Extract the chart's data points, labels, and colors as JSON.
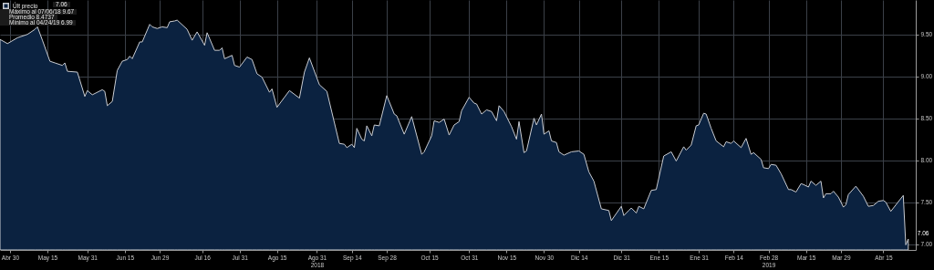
{
  "chart_data": {
    "type": "area",
    "annotations": [
      "7.06",
      "Máximo al 07/06/18 9.67",
      "Promedio 8.4737",
      "Mínimo al 04/24/19 6.99"
    ],
    "x": [
      "2018-04-26",
      "2018-04-29",
      "2018-05-03",
      "2018-05-07",
      "2018-05-10",
      "2018-05-11",
      "2018-05-13",
      "2018-05-16",
      "2018-05-18",
      "2018-05-21",
      "2018-05-22",
      "2018-05-23",
      "2018-05-27",
      "2018-05-30",
      "2018-05-31",
      "2018-06-02",
      "2018-06-06",
      "2018-06-07",
      "2018-06-08",
      "2018-06-10",
      "2018-06-12",
      "2018-06-14",
      "2018-06-16",
      "2018-06-17",
      "2018-06-18",
      "2018-06-21",
      "2018-06-22",
      "2018-06-25",
      "2018-06-26",
      "2018-06-28",
      "2018-06-30",
      "2018-07-02",
      "2018-07-03",
      "2018-07-05",
      "2018-07-06",
      "2018-07-10",
      "2018-07-12",
      "2018-07-14",
      "2018-07-17",
      "2018-07-18",
      "2018-07-21",
      "2018-07-23",
      "2018-07-24",
      "2018-07-25",
      "2018-07-28",
      "2018-07-29",
      "2018-07-31",
      "2018-08-03",
      "2018-08-05",
      "2018-08-07",
      "2018-08-09",
      "2018-08-12",
      "2018-08-13",
      "2018-08-15",
      "2018-08-20",
      "2018-08-24",
      "2018-08-26",
      "2018-08-28",
      "2018-09-01",
      "2018-09-04",
      "2018-09-09",
      "2018-09-11",
      "2018-09-12",
      "2018-09-14",
      "2018-09-15",
      "2018-09-16",
      "2018-09-18",
      "2018-09-19",
      "2018-09-20",
      "2018-09-22",
      "2018-09-23",
      "2018-09-25",
      "2018-09-28",
      "2018-10-01",
      "2018-10-02",
      "2018-10-05",
      "2018-10-08",
      "2018-10-12",
      "2018-10-13",
      "2018-10-16",
      "2018-10-17",
      "2018-10-19",
      "2018-10-21",
      "2018-10-23",
      "2018-10-25",
      "2018-10-27",
      "2018-10-28",
      "2018-10-31",
      "2018-11-02",
      "2018-11-03",
      "2018-11-05",
      "2018-11-07",
      "2018-11-09",
      "2018-11-11",
      "2018-11-12",
      "2018-11-14",
      "2018-11-17",
      "2018-11-19",
      "2018-11-20",
      "2018-11-22",
      "2018-11-23",
      "2018-11-26",
      "2018-11-27",
      "2018-11-29",
      "2018-11-30",
      "2018-12-02",
      "2018-12-03",
      "2018-12-05",
      "2018-12-06",
      "2018-12-08",
      "2018-12-11",
      "2018-12-14",
      "2018-12-16",
      "2018-12-18",
      "2018-12-20",
      "2018-12-23",
      "2018-12-26",
      "2018-12-27",
      "2018-12-31",
      "2019-01-01",
      "2019-01-03",
      "2019-01-04",
      "2019-01-06",
      "2019-01-07",
      "2019-01-09",
      "2019-01-12",
      "2019-01-14",
      "2019-01-17",
      "2019-01-20",
      "2019-01-22",
      "2019-01-25",
      "2019-01-26",
      "2019-01-28",
      "2019-01-30",
      "2019-01-31",
      "2019-02-02",
      "2019-02-03",
      "2019-02-05",
      "2019-02-07",
      "2019-02-10",
      "2019-02-11",
      "2019-02-13",
      "2019-02-14",
      "2019-02-17",
      "2019-02-19",
      "2019-02-21",
      "2019-02-22",
      "2019-02-25",
      "2019-02-26",
      "2019-02-28",
      "2019-03-01",
      "2019-03-03",
      "2019-03-05",
      "2019-03-08",
      "2019-03-09",
      "2019-03-11",
      "2019-03-13",
      "2019-03-14",
      "2019-03-16",
      "2019-03-17",
      "2019-03-19",
      "2019-03-21",
      "2019-03-22",
      "2019-03-23",
      "2019-03-25",
      "2019-03-26",
      "2019-03-28",
      "2019-03-30",
      "2019-03-31",
      "2019-04-01",
      "2019-04-04",
      "2019-04-07",
      "2019-04-09",
      "2019-04-11",
      "2019-04-13",
      "2019-04-15",
      "2019-04-16",
      "2019-04-18",
      "2019-04-23",
      "2019-04-24",
      "2019-04-25"
    ],
    "series": [
      {
        "name": "Últ precio",
        "color": "#0b2240",
        "values": [
          9.44,
          9.39,
          9.46,
          9.5,
          9.56,
          9.59,
          9.43,
          9.18,
          9.16,
          9.13,
          9.16,
          9.06,
          9.05,
          8.76,
          8.83,
          8.78,
          8.84,
          8.82,
          8.65,
          8.7,
          9.07,
          9.18,
          9.2,
          9.24,
          9.21,
          9.41,
          9.41,
          9.62,
          9.59,
          9.57,
          9.59,
          9.58,
          9.65,
          9.66,
          9.67,
          9.56,
          9.43,
          9.53,
          9.37,
          9.52,
          9.31,
          9.31,
          9.34,
          9.21,
          9.25,
          9.13,
          9.11,
          9.23,
          9.2,
          9.03,
          8.99,
          8.81,
          8.85,
          8.63,
          8.83,
          8.74,
          9.05,
          9.22,
          8.9,
          8.82,
          8.2,
          8.19,
          8.15,
          8.19,
          8.15,
          8.38,
          8.25,
          8.23,
          8.41,
          8.29,
          8.42,
          8.41,
          8.77,
          8.55,
          8.53,
          8.31,
          8.52,
          8.07,
          8.1,
          8.29,
          8.47,
          8.45,
          8.49,
          8.3,
          8.42,
          8.46,
          8.59,
          8.75,
          8.68,
          8.67,
          8.55,
          8.6,
          8.58,
          8.47,
          8.65,
          8.58,
          8.4,
          8.25,
          8.46,
          8.09,
          8.11,
          8.5,
          8.42,
          8.55,
          8.31,
          8.35,
          8.23,
          8.21,
          8.1,
          8.06,
          8.1,
          8.11,
          8.07,
          7.86,
          7.75,
          7.42,
          7.4,
          7.28,
          7.45,
          7.34,
          7.4,
          7.43,
          7.37,
          7.45,
          7.42,
          7.64,
          7.65,
          8.05,
          8.1,
          7.99,
          8.16,
          8.12,
          8.18,
          8.41,
          8.42,
          8.56,
          8.55,
          8.38,
          8.23,
          8.16,
          8.22,
          8.2,
          8.23,
          8.15,
          8.26,
          8.07,
          8.09,
          8.01,
          7.91,
          7.9,
          7.95,
          7.94,
          7.84,
          7.65,
          7.65,
          7.62,
          7.72,
          7.71,
          7.68,
          7.75,
          7.7,
          7.75,
          7.55,
          7.6,
          7.6,
          7.63,
          7.56,
          7.44,
          7.47,
          7.59,
          7.69,
          7.57,
          7.45,
          7.46,
          7.51,
          7.52,
          7.5,
          7.39,
          7.58,
          6.99,
          7.06
        ],
        "value_labels": [
          null,
          null,
          null,
          null,
          null,
          null,
          null,
          null,
          null,
          null,
          null,
          null,
          null,
          null,
          null,
          null,
          null,
          null,
          null,
          null,
          null,
          null,
          null,
          null,
          null,
          null,
          null,
          null,
          null,
          null,
          null,
          null,
          null,
          null,
          null,
          null,
          null,
          null,
          null,
          null,
          null,
          null,
          null,
          null,
          null,
          null,
          null,
          null,
          null,
          null,
          null,
          null,
          null,
          null,
          null,
          null,
          null,
          null,
          null,
          null,
          null,
          null,
          null,
          null,
          null,
          null,
          null,
          null,
          null,
          null,
          null,
          null,
          null,
          null,
          null,
          null,
          null,
          null,
          null,
          null,
          null,
          null,
          null,
          null,
          null,
          null,
          null,
          null,
          null,
          null,
          null,
          null,
          null,
          null,
          null,
          null,
          null,
          null,
          null,
          null,
          null,
          null,
          null,
          null,
          null,
          null,
          null,
          null,
          null,
          null,
          null,
          null,
          null,
          null,
          null,
          null,
          null,
          null,
          null,
          null,
          null,
          null,
          null,
          null,
          null,
          null,
          null,
          null,
          null,
          null,
          null,
          null,
          null,
          null,
          null,
          null,
          null,
          null,
          null,
          null,
          null,
          null,
          null,
          null,
          null,
          null,
          null,
          null,
          null,
          null,
          null,
          null,
          null,
          null,
          null,
          null,
          null,
          null,
          null,
          null,
          null,
          null,
          null,
          null,
          null,
          null,
          null,
          null,
          null,
          null,
          null,
          null,
          null,
          null,
          null,
          null,
          null,
          null,
          null,
          null,
          "7.06"
        ]
      }
    ],
    "xlim": [
      "2018-04-26",
      "2019-04-28"
    ],
    "xticks": [
      {
        "value": "2018-04-30",
        "label": "Abr 30"
      },
      {
        "value": "2018-05-15",
        "label": "May 15"
      },
      {
        "value": "2018-05-31",
        "label": "May 31"
      },
      {
        "value": "2018-06-15",
        "label": "Jun 15"
      },
      {
        "value": "2018-06-29",
        "label": "Jun 29"
      },
      {
        "value": "2018-07-16",
        "label": "Jul 16"
      },
      {
        "value": "2018-07-31",
        "label": "Jul 31"
      },
      {
        "value": "2018-08-15",
        "label": "Ago 15"
      },
      {
        "value": "2018-08-31",
        "label": "Ago 31\n2018"
      },
      {
        "value": "2018-09-14",
        "label": "Sep 14"
      },
      {
        "value": "2018-09-28",
        "label": "Sep 28"
      },
      {
        "value": "2018-10-15",
        "label": "Oct 15"
      },
      {
        "value": "2018-10-31",
        "label": "Oct 31"
      },
      {
        "value": "2018-11-15",
        "label": "Nov 15"
      },
      {
        "value": "2018-11-30",
        "label": "Nov 30"
      },
      {
        "value": "2018-12-14",
        "label": "Dic 14"
      },
      {
        "value": "2018-12-31",
        "label": "Dic 31"
      },
      {
        "value": "2019-01-15",
        "label": "Ene 15"
      },
      {
        "value": "2019-01-31",
        "label": "Ene 31"
      },
      {
        "value": "2019-02-14",
        "label": "Feb 14"
      },
      {
        "value": "2019-02-28",
        "label": "Feb 28\n2019"
      },
      {
        "value": "2019-03-15",
        "label": "Mar 15"
      },
      {
        "value": "2019-03-29",
        "label": "Mar 29"
      },
      {
        "value": "2019-04-15",
        "label": "Abr 15"
      }
    ],
    "ylim": [
      6.93,
      9.91
    ],
    "yticks": [
      {
        "value": 7,
        "label": "7.00"
      },
      {
        "value": 7.5,
        "label": "7.50"
      },
      {
        "value": 8,
        "label": "8.00"
      },
      {
        "value": 8.5,
        "label": "8.50"
      },
      {
        "value": 9,
        "label": "9.00"
      },
      {
        "value": 9.5,
        "label": "9.50"
      }
    ],
    "grid": true,
    "legend": "top left"
  }
}
